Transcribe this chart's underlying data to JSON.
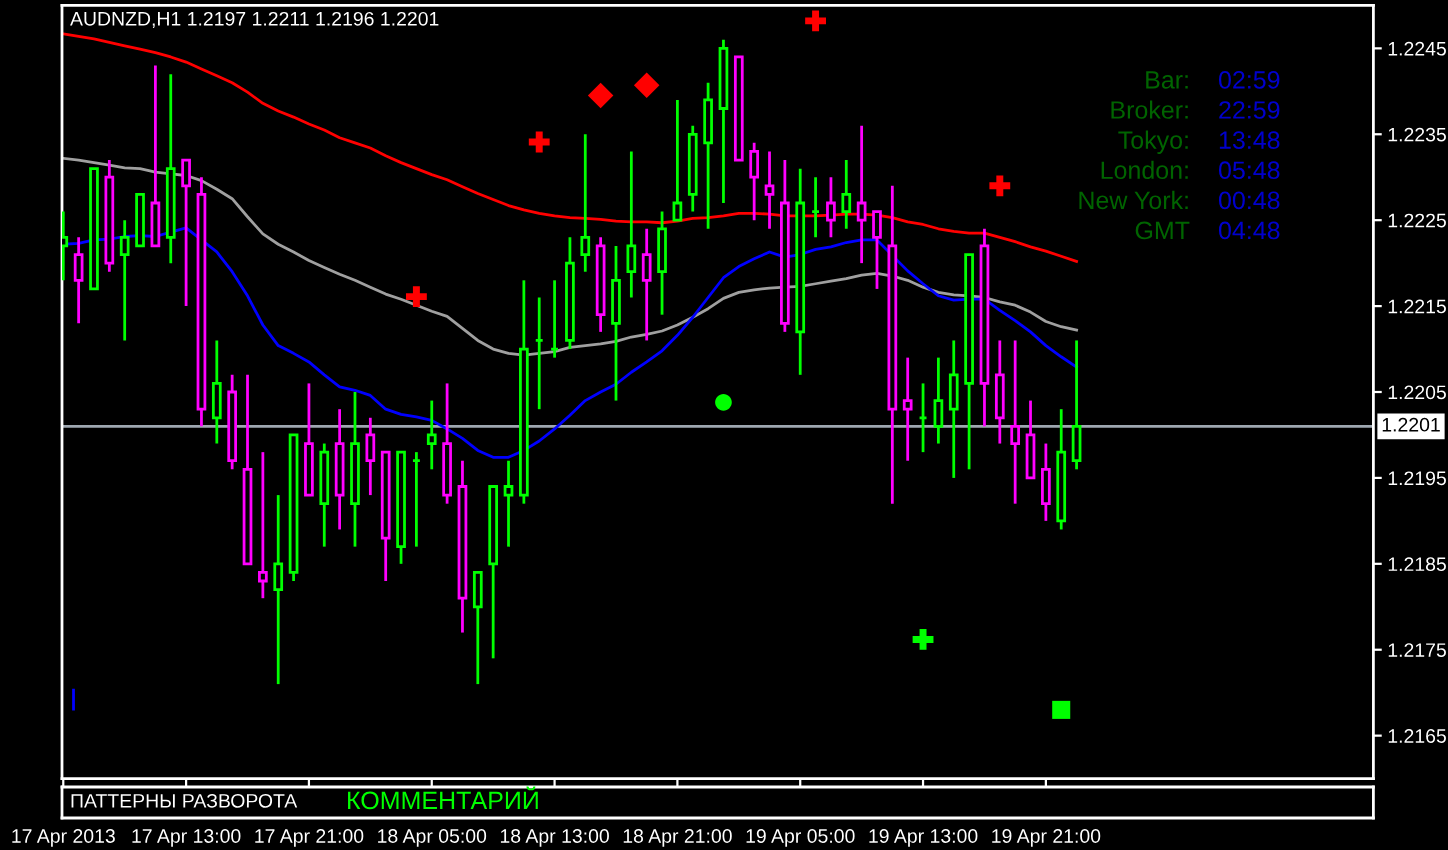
{
  "chart_data": [
    {
      "type": "candlestick",
      "title": "AUDNZD,H1 1.2197 1.2211 1.2196 1.2201",
      "x": [
        "2013-04-17T05:00",
        "2013-04-17T06:00",
        "2013-04-17T07:00",
        "2013-04-17T08:00",
        "2013-04-17T09:00",
        "2013-04-17T10:00",
        "2013-04-17T11:00",
        "2013-04-17T12:00",
        "2013-04-17T13:00",
        "2013-04-17T14:00",
        "2013-04-17T15:00",
        "2013-04-17T16:00",
        "2013-04-17T17:00",
        "2013-04-17T18:00",
        "2013-04-17T19:00",
        "2013-04-17T20:00",
        "2013-04-17T21:00",
        "2013-04-17T22:00",
        "2013-04-17T23:00",
        "2013-04-18T00:00",
        "2013-04-18T01:00",
        "2013-04-18T02:00",
        "2013-04-18T03:00",
        "2013-04-18T04:00",
        "2013-04-18T05:00",
        "2013-04-18T06:00",
        "2013-04-18T07:00",
        "2013-04-18T08:00",
        "2013-04-18T09:00",
        "2013-04-18T10:00",
        "2013-04-18T11:00",
        "2013-04-18T12:00",
        "2013-04-18T13:00",
        "2013-04-18T14:00",
        "2013-04-18T15:00",
        "2013-04-18T16:00",
        "2013-04-18T17:00",
        "2013-04-18T18:00",
        "2013-04-18T19:00",
        "2013-04-18T20:00",
        "2013-04-18T21:00",
        "2013-04-18T22:00",
        "2013-04-18T23:00",
        "2013-04-19T00:00",
        "2013-04-19T01:00",
        "2013-04-19T02:00",
        "2013-04-19T03:00",
        "2013-04-19T04:00",
        "2013-04-19T05:00",
        "2013-04-19T06:00",
        "2013-04-19T07:00",
        "2013-04-19T08:00",
        "2013-04-19T09:00",
        "2013-04-19T10:00",
        "2013-04-19T11:00",
        "2013-04-19T12:00",
        "2013-04-19T13:00",
        "2013-04-19T14:00",
        "2013-04-19T15:00",
        "2013-04-19T16:00",
        "2013-04-19T17:00",
        "2013-04-19T18:00",
        "2013-04-19T19:00",
        "2013-04-19T20:00",
        "2013-04-19T21:00",
        "2013-04-19T22:00",
        "2013-04-19T23:00"
      ],
      "ohlc": [
        [
          1.2222,
          1.2226,
          1.2218,
          1.2223
        ],
        [
          1.2221,
          1.2223,
          1.2213,
          1.2218
        ],
        [
          1.2217,
          1.2231,
          1.2217,
          1.2231
        ],
        [
          1.223,
          1.2232,
          1.2219,
          1.222
        ],
        [
          1.2221,
          1.2225,
          1.2211,
          1.2223
        ],
        [
          1.2222,
          1.2228,
          1.2222,
          1.2228
        ],
        [
          1.2227,
          1.2243,
          1.2222,
          1.2222
        ],
        [
          1.2223,
          1.2242,
          1.222,
          1.2231
        ],
        [
          1.2232,
          1.2232,
          1.2215,
          1.2229
        ],
        [
          1.2228,
          1.223,
          1.2201,
          1.2203
        ],
        [
          1.2202,
          1.2211,
          1.2199,
          1.2206
        ],
        [
          1.2205,
          1.2207,
          1.2196,
          1.2197
        ],
        [
          1.2196,
          1.2207,
          1.2185,
          1.2185
        ],
        [
          1.2184,
          1.2198,
          1.2181,
          1.2183
        ],
        [
          1.2182,
          1.2193,
          1.2171,
          1.2185
        ],
        [
          1.2184,
          1.22,
          1.2183,
          1.22
        ],
        [
          1.2199,
          1.2206,
          1.2193,
          1.2193
        ],
        [
          1.2192,
          1.2199,
          1.2187,
          1.2198
        ],
        [
          1.2199,
          1.2203,
          1.2189,
          1.2193
        ],
        [
          1.2192,
          1.2205,
          1.2187,
          1.2199
        ],
        [
          1.22,
          1.2202,
          1.2193,
          1.2197
        ],
        [
          1.2198,
          1.2198,
          1.2183,
          1.2188
        ],
        [
          1.2187,
          1.2198,
          1.2185,
          1.2198
        ],
        [
          1.2197,
          1.2198,
          1.2187,
          1.2197
        ],
        [
          1.2199,
          1.2204,
          1.2196,
          1.22
        ],
        [
          1.2199,
          1.2206,
          1.2192,
          1.2193
        ],
        [
          1.2194,
          1.2197,
          1.2177,
          1.2181
        ],
        [
          1.218,
          1.2184,
          1.2171,
          1.2184
        ],
        [
          1.2185,
          1.2194,
          1.2174,
          1.2194
        ],
        [
          1.2193,
          1.2197,
          1.2187,
          1.2194
        ],
        [
          1.2193,
          1.2218,
          1.2192,
          1.221
        ],
        [
          1.2211,
          1.2216,
          1.2203,
          1.2211
        ],
        [
          1.221,
          1.2218,
          1.2209,
          1.221
        ],
        [
          1.2211,
          1.2223,
          1.221,
          1.222
        ],
        [
          1.2221,
          1.2235,
          1.2219,
          1.2223
        ],
        [
          1.2222,
          1.2223,
          1.2212,
          1.2214
        ],
        [
          1.2213,
          1.2222,
          1.2204,
          1.2218
        ],
        [
          1.2219,
          1.2233,
          1.2216,
          1.2222
        ],
        [
          1.2221,
          1.2224,
          1.2211,
          1.2218
        ],
        [
          1.2219,
          1.2226,
          1.2214,
          1.2224
        ],
        [
          1.2225,
          1.2239,
          1.2225,
          1.2227
        ],
        [
          1.2228,
          1.2236,
          1.2226,
          1.2235
        ],
        [
          1.2234,
          1.2241,
          1.2224,
          1.2239
        ],
        [
          1.2238,
          1.2246,
          1.2227,
          1.2245
        ],
        [
          1.2244,
          1.2244,
          1.2232,
          1.2232
        ],
        [
          1.2233,
          1.2234,
          1.2225,
          1.223
        ],
        [
          1.2229,
          1.2233,
          1.2224,
          1.2228
        ],
        [
          1.2227,
          1.2232,
          1.2212,
          1.2213
        ],
        [
          1.2212,
          1.2231,
          1.2207,
          1.2227
        ],
        [
          1.2226,
          1.223,
          1.2223,
          1.2226
        ],
        [
          1.2227,
          1.223,
          1.2223,
          1.2225
        ],
        [
          1.2226,
          1.2232,
          1.2224,
          1.2228
        ],
        [
          1.2227,
          1.2236,
          1.222,
          1.2225
        ],
        [
          1.2226,
          1.2226,
          1.2217,
          1.2223
        ],
        [
          1.2222,
          1.2229,
          1.2192,
          1.2203
        ],
        [
          1.2204,
          1.2209,
          1.2197,
          1.2203
        ],
        [
          1.2202,
          1.2206,
          1.2198,
          1.2202
        ],
        [
          1.2201,
          1.2209,
          1.2199,
          1.2204
        ],
        [
          1.2203,
          1.2211,
          1.2195,
          1.2207
        ],
        [
          1.2206,
          1.2221,
          1.2196,
          1.2221
        ],
        [
          1.2222,
          1.2224,
          1.2201,
          1.2206
        ],
        [
          1.2207,
          1.2211,
          1.2199,
          1.2202
        ],
        [
          1.2201,
          1.2211,
          1.2192,
          1.2199
        ],
        [
          1.22,
          1.2204,
          1.2195,
          1.2195
        ],
        [
          1.2196,
          1.2199,
          1.219,
          1.2192
        ],
        [
          1.219,
          1.2203,
          1.2189,
          1.2198
        ],
        [
          1.2197,
          1.2211,
          1.2196,
          1.2201
        ]
      ],
      "colors": [
        "#00ff00",
        "#ff00ff",
        "#00ff00",
        "#ff00ff",
        "#00ff00",
        "#00ff00",
        "#ff00ff",
        "#00ff00",
        "#ff00ff",
        "#ff00ff",
        "#00ff00",
        "#ff00ff",
        "#ff00ff",
        "#ff00ff",
        "#00ff00",
        "#00ff00",
        "#ff00ff",
        "#00ff00",
        "#ff00ff",
        "#00ff00",
        "#ff00ff",
        "#ff00ff",
        "#00ff00",
        "#00ff00",
        "#00ff00",
        "#ff00ff",
        "#ff00ff",
        "#00ff00",
        "#00ff00",
        "#00ff00",
        "#00ff00",
        "#00ff00",
        "#00ff00",
        "#00ff00",
        "#00ff00",
        "#ff00ff",
        "#00ff00",
        "#00ff00",
        "#ff00ff",
        "#00ff00",
        "#00ff00",
        "#00ff00",
        "#00ff00",
        "#00ff00",
        "#ff00ff",
        "#ff00ff",
        "#ff00ff",
        "#ff00ff",
        "#00ff00",
        "#00ff00",
        "#ff00ff",
        "#00ff00",
        "#ff00ff",
        "#ff00ff",
        "#ff00ff",
        "#ff00ff",
        "#00ff00",
        "#00ff00",
        "#00ff00",
        "#00ff00",
        "#ff00ff",
        "#ff00ff",
        "#ff00ff",
        "#ff00ff",
        "#ff00ff",
        "#00ff00",
        "#00ff00"
      ],
      "series": [
        {
          "type": "line",
          "color": "#ff0000",
          "values": [
            1.22467,
            1.22464,
            1.22461,
            1.22457,
            1.22453,
            1.22449,
            1.22445,
            1.2244,
            1.22434,
            1.22426,
            1.22418,
            1.2241,
            1.22399,
            1.22386,
            1.22377,
            1.2237,
            1.22362,
            1.22355,
            1.22346,
            1.2234,
            1.22334,
            1.22325,
            1.22317,
            1.2231,
            1.22303,
            1.22297,
            1.22289,
            1.22281,
            1.22274,
            1.22267,
            1.22262,
            1.22258,
            1.22255,
            1.22253,
            1.22252,
            1.22251,
            1.22249,
            1.22248,
            1.22248,
            1.22247,
            1.22249,
            1.22252,
            1.22253,
            1.22255,
            1.22258,
            1.22258,
            1.22257,
            1.22255,
            1.22255,
            1.22255,
            1.22256,
            1.22257,
            1.22257,
            1.22256,
            1.22253,
            1.22248,
            1.22245,
            1.2224,
            1.22237,
            1.22235,
            1.22235,
            1.2223,
            1.22225,
            1.22219,
            1.22214,
            1.22208,
            1.22202
          ]
        },
        {
          "type": "line",
          "color": "#a0a0a0",
          "values": [
            1.22322,
            1.2232,
            1.22317,
            1.22314,
            1.22311,
            1.2231,
            1.22306,
            1.22304,
            1.22302,
            1.22296,
            1.22286,
            1.22275,
            1.22254,
            1.22234,
            1.22222,
            1.22213,
            1.22203,
            1.22195,
            1.22187,
            1.2218,
            1.22172,
            1.22164,
            1.22158,
            1.22151,
            1.22144,
            1.22138,
            1.22124,
            1.2211,
            1.221,
            1.22095,
            1.22093,
            1.22095,
            1.22097,
            1.22102,
            1.22104,
            1.22106,
            1.22109,
            1.22114,
            1.22117,
            1.22121,
            1.22128,
            1.22137,
            1.22147,
            1.22159,
            1.22166,
            1.22169,
            1.22171,
            1.22172,
            1.22173,
            1.22176,
            1.22179,
            1.22182,
            1.22186,
            1.22188,
            1.22185,
            1.2218,
            1.22172,
            1.22166,
            1.22163,
            1.22162,
            1.2216,
            1.22155,
            1.22151,
            1.22143,
            1.22132,
            1.22126,
            1.22122
          ]
        },
        {
          "type": "line",
          "color": "#0000ff",
          "values": [
            1.22222,
            1.22223,
            1.22227,
            1.22228,
            1.22231,
            1.22232,
            1.22231,
            1.22236,
            1.22241,
            1.22227,
            1.22213,
            1.2219,
            1.22162,
            1.22128,
            1.22104,
            1.22095,
            1.22085,
            1.2207,
            1.22056,
            1.22052,
            1.22046,
            1.2203,
            1.22024,
            1.22021,
            1.22017,
            1.22007,
            1.21996,
            1.21982,
            1.21974,
            1.21974,
            1.21982,
            1.21993,
            1.22007,
            1.22023,
            1.2204,
            1.2205,
            1.22059,
            1.22073,
            1.22085,
            1.22098,
            1.22116,
            1.22137,
            1.2216,
            1.22183,
            1.22196,
            1.22205,
            1.22213,
            1.22207,
            1.2221,
            1.22216,
            1.22219,
            1.22224,
            1.22227,
            1.22227,
            1.22209,
            1.22191,
            1.22176,
            1.22162,
            1.22157,
            1.22158,
            1.22158,
            1.22145,
            1.22133,
            1.2212,
            1.22104,
            1.22091,
            1.22079
          ]
        },
        {
          "type": "scatter",
          "color": "#ff0000",
          "marker": "cross",
          "x": [
            "2013-04-18T04:00",
            "2013-04-18T12:00",
            "2013-04-19T06:00"
          ],
          "values": [
            1.22161,
            1.22341,
            1.22482
          ]
        },
        {
          "type": "scatter",
          "color": "#ff0000",
          "marker": "diamond",
          "x": [
            "2013-04-18T16:00",
            "2013-04-18T19:00"
          ],
          "values": [
            1.22395,
            1.22407
          ]
        },
        {
          "type": "scatter",
          "color": "#ff0000",
          "marker": "cross",
          "x": [
            "2013-04-19T18:00"
          ],
          "values": [
            1.2229
          ]
        },
        {
          "type": "scatter",
          "color": "#00ff00",
          "marker": "circle",
          "x": [
            "2013-04-19T00:00"
          ],
          "values": [
            1.22038
          ]
        },
        {
          "type": "scatter",
          "color": "#00ff00",
          "marker": "cross",
          "x": [
            "2013-04-19T13:00"
          ],
          "values": [
            1.21762
          ]
        },
        {
          "type": "scatter",
          "color": "#00ff00",
          "marker": "square",
          "x": [
            "2013-04-19T22:00"
          ],
          "values": [
            1.2168
          ]
        },
        {
          "type": "line",
          "color": "#0000ff",
          "x": [
            "2013-04-17T05:40",
            "2013-04-17T05:40"
          ],
          "values": [
            1.21703,
            1.21681
          ]
        }
      ],
      "xlim": [
        "2013-04-17T04:55",
        "2013-04-20T18:20"
      ],
      "xticks": [
        {
          "value": "2013-04-17T05:00",
          "label": "17 Apr 2013"
        },
        {
          "value": "2013-04-17T13:00",
          "label": "17 Apr 13:00"
        },
        {
          "value": "2013-04-17T21:00",
          "label": "17 Apr 21:00"
        },
        {
          "value": "2013-04-18T05:00",
          "label": "18 Apr 05:00"
        },
        {
          "value": "2013-04-18T13:00",
          "label": "18 Apr 13:00"
        },
        {
          "value": "2013-04-18T21:00",
          "label": "18 Apr 21:00"
        },
        {
          "value": "2013-04-19T05:00",
          "label": "19 Apr 05:00"
        },
        {
          "value": "2013-04-19T13:00",
          "label": "19 Apr 13:00"
        },
        {
          "value": "2013-04-19T21:00",
          "label": "19 Apr 21:00"
        }
      ],
      "ylim": [
        1.216,
        1.225
      ],
      "yticks": [
        1.2165,
        1.2175,
        1.2185,
        1.2195,
        1.2205,
        1.2215,
        1.2225,
        1.2235,
        1.2245
      ],
      "ref_lines": [
        {
          "axis": "y",
          "value": 1.2201,
          "label": "1.2201",
          "color": "#9ea7b0"
        }
      ],
      "annotations": [
        "Bar:",
        "02:59",
        "Broker:",
        "22:59",
        "Tokyo:",
        "13:48",
        "London:",
        "05:48",
        "New York:",
        "00:48",
        "GMT",
        "04:48"
      ],
      "grid": false
    },
    {
      "type": "other",
      "annotations": [
        "ПАТТЕРНЫ РАЗВОРОТА",
        "КОММЕНТАРИЙ"
      ]
    }
  ]
}
